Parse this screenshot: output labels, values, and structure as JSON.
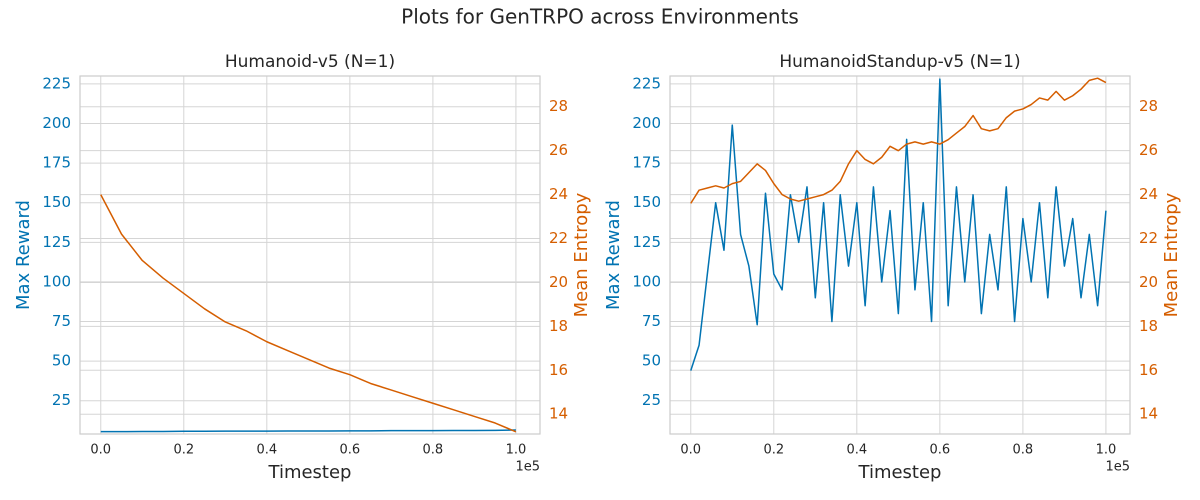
{
  "title": "Plots for GenTRPO across Environments",
  "chart_data": [
    {
      "type": "line",
      "title": "Humanoid-v5 (N=1)",
      "xlabel": "Timestep",
      "ylabel": "Max Reward",
      "y2label": "Mean Entropy",
      "xoffset_label": "1e5",
      "x": [
        0,
        0.05,
        0.1,
        0.15,
        0.2,
        0.25,
        0.3,
        0.35,
        0.4,
        0.45,
        0.5,
        0.55,
        0.6,
        0.65,
        0.7,
        0.75,
        0.8,
        0.85,
        0.9,
        0.95,
        1
      ],
      "xlim": [
        -0.05,
        1.058
      ],
      "xticks": [
        {
          "value": 0,
          "label": "0.0"
        },
        0.2,
        0.4,
        0.6,
        0.8,
        {
          "value": 1,
          "label": "1.0"
        }
      ],
      "ylim": [
        4,
        230
      ],
      "yticks": [
        25,
        50,
        75,
        100,
        125,
        150,
        175,
        200,
        225
      ],
      "y2lim": [
        13.1,
        29.4
      ],
      "y2ticks": [
        14,
        16,
        18,
        20,
        22,
        24,
        26,
        28
      ],
      "grid": true,
      "series": [
        {
          "name": "Max Reward",
          "color": "#0173b2",
          "values": [
            5.5,
            5.5,
            5.6,
            5.6,
            5.7,
            5.7,
            5.8,
            5.8,
            5.8,
            5.9,
            5.9,
            5.9,
            6.0,
            6.0,
            6.1,
            6.1,
            6.1,
            6.2,
            6.2,
            6.3,
            6.5
          ]
        },
        {
          "name": "Mean Entropy",
          "color": "#d55e00",
          "axis": "y2",
          "values": [
            24.0,
            22.2,
            21.0,
            20.2,
            19.5,
            18.8,
            18.2,
            17.8,
            17.3,
            16.9,
            16.5,
            16.1,
            15.8,
            15.4,
            15.1,
            14.8,
            14.5,
            14.2,
            13.9,
            13.6,
            13.2
          ]
        }
      ]
    },
    {
      "type": "line",
      "title": "HumanoidStandup-v5 (N=1)",
      "xlabel": "Timestep",
      "ylabel": "Max Reward",
      "y2label": "Mean Entropy",
      "xoffset_label": "1e5",
      "x": [
        0,
        0.02,
        0.04,
        0.06,
        0.08,
        0.1,
        0.12,
        0.14,
        0.16,
        0.18,
        0.2,
        0.22,
        0.24,
        0.26,
        0.28,
        0.3,
        0.32,
        0.34,
        0.36,
        0.38,
        0.4,
        0.42,
        0.44,
        0.46,
        0.48,
        0.5,
        0.52,
        0.54,
        0.56,
        0.58,
        0.6,
        0.62,
        0.64,
        0.66,
        0.68,
        0.7,
        0.72,
        0.74,
        0.76,
        0.78,
        0.8,
        0.82,
        0.84,
        0.86,
        0.88,
        0.9,
        0.92,
        0.94,
        0.96,
        0.98,
        1
      ],
      "xlim": [
        -0.05,
        1.058
      ],
      "xticks": [
        {
          "value": 0,
          "label": "0.0"
        },
        0.2,
        0.4,
        0.6,
        0.8,
        {
          "value": 1,
          "label": "1.0"
        }
      ],
      "ylim": [
        4,
        230
      ],
      "yticks": [
        25,
        50,
        75,
        100,
        125,
        150,
        175,
        200,
        225
      ],
      "y2lim": [
        13.1,
        29.4
      ],
      "y2ticks": [
        14,
        16,
        18,
        20,
        22,
        24,
        26,
        28
      ],
      "grid": true,
      "series": [
        {
          "name": "Max Reward",
          "color": "#0173b2",
          "values": [
            44,
            60,
            105,
            150,
            120,
            199,
            130,
            110,
            73,
            156,
            105,
            95,
            155,
            125,
            160,
            90,
            150,
            75,
            155,
            110,
            150,
            85,
            160,
            100,
            145,
            80,
            190,
            95,
            150,
            75,
            228,
            85,
            160,
            100,
            155,
            80,
            130,
            95,
            160,
            75,
            140,
            100,
            150,
            90,
            160,
            110,
            140,
            90,
            130,
            85,
            145
          ]
        },
        {
          "name": "Mean Entropy",
          "color": "#d55e00",
          "axis": "y2",
          "values": [
            23.6,
            24.2,
            24.3,
            24.4,
            24.3,
            24.5,
            24.6,
            25.0,
            25.4,
            25.1,
            24.5,
            24.0,
            23.8,
            23.7,
            23.8,
            23.9,
            24.0,
            24.2,
            24.6,
            25.4,
            26.0,
            25.6,
            25.4,
            25.7,
            26.2,
            26.0,
            26.3,
            26.4,
            26.3,
            26.4,
            26.3,
            26.5,
            26.8,
            27.1,
            27.6,
            27.0,
            26.9,
            27.0,
            27.5,
            27.8,
            27.9,
            28.1,
            28.4,
            28.3,
            28.7,
            28.3,
            28.5,
            28.8,
            29.2,
            29.3,
            29.1
          ]
        }
      ]
    }
  ]
}
